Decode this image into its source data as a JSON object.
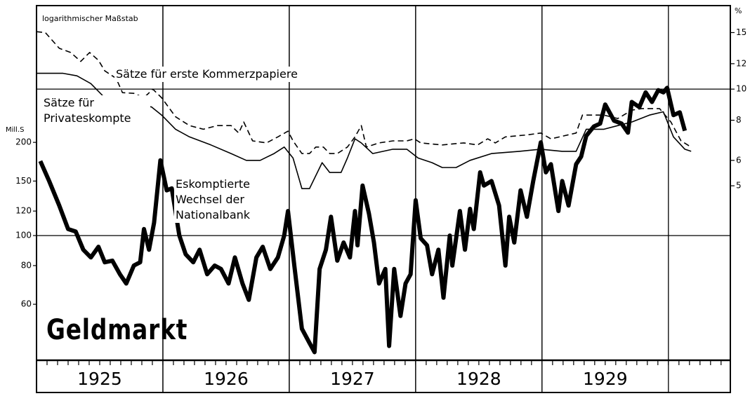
{
  "chart_data": {
    "type": "line",
    "title": "Geldmarkt",
    "subtitle": "logarithmischer Maßstab",
    "y_label": "Mill.S",
    "y2_label": "%",
    "log_scale": true,
    "xlim": [
      1925,
      1930.49
    ],
    "xticks": [
      {
        "value": 1925.5,
        "label": "1925"
      },
      {
        "value": 1926.5,
        "label": "1926"
      },
      {
        "value": 1927.5,
        "label": "1927"
      },
      {
        "value": 1928.5,
        "label": "1928"
      },
      {
        "value": 1929.5,
        "label": "1929"
      }
    ],
    "ylim": [
      40.4,
      553
    ],
    "yticks": [
      60,
      80,
      100,
      120,
      150,
      200
    ],
    "y2lim": [
      1.46,
      18.2
    ],
    "y2ticks": [
      5,
      6,
      8,
      10,
      12,
      15
    ],
    "ygrid": [
      100
    ],
    "y2grid": [
      10
    ],
    "series": [
      {
        "name": "Eskomptierte Wechsel der Nationalbank",
        "color": "#000000",
        "line_width": 6,
        "dashed": false,
        "axis": "y",
        "x": [
          1925.03,
          1925.1,
          1925.18,
          1925.25,
          1925.31,
          1925.37,
          1925.43,
          1925.49,
          1925.54,
          1925.6,
          1925.66,
          1925.71,
          1925.77,
          1925.82,
          1925.85,
          1925.89,
          1925.93,
          1925.98,
          1926.03,
          1926.07,
          1926.13,
          1926.18,
          1926.24,
          1926.29,
          1926.35,
          1926.41,
          1926.46,
          1926.52,
          1926.57,
          1926.63,
          1926.68,
          1926.74,
          1926.79,
          1926.85,
          1926.91,
          1926.96,
          1926.99,
          1927.04,
          1927.1,
          1927.16,
          1927.2,
          1927.24,
          1927.29,
          1927.33,
          1927.38,
          1927.43,
          1927.48,
          1927.52,
          1927.54,
          1927.58,
          1927.63,
          1927.67,
          1927.71,
          1927.76,
          1927.79,
          1927.83,
          1927.88,
          1927.92,
          1927.96,
          1928.0,
          1928.04,
          1928.09,
          1928.13,
          1928.18,
          1928.22,
          1928.27,
          1928.29,
          1928.35,
          1928.39,
          1928.43,
          1928.46,
          1928.51,
          1928.54,
          1928.6,
          1928.66,
          1928.71,
          1928.74,
          1928.78,
          1928.83,
          1928.88,
          1928.93,
          1928.99,
          1929.03,
          1929.07,
          1929.13,
          1929.16,
          1929.21,
          1929.27,
          1929.31,
          1929.35,
          1929.41,
          1929.46,
          1929.5,
          1929.57,
          1929.63,
          1929.68,
          1929.71,
          1929.77,
          1929.82,
          1929.87,
          1929.92,
          1929.96,
          1929.99,
          1930.04,
          1930.09,
          1930.13
        ],
        "values": [
          174,
          150,
          125,
          105,
          103,
          90,
          85,
          92,
          82,
          83,
          75,
          70,
          80,
          82,
          105,
          90,
          110,
          175,
          140,
          142,
          100,
          87,
          82,
          90,
          75,
          80,
          78,
          70,
          85,
          70,
          62,
          85,
          92,
          78,
          85,
          100,
          120,
          80,
          50,
          45,
          42,
          78,
          90,
          115,
          83,
          95,
          85,
          120,
          93,
          145,
          118,
          95,
          70,
          78,
          44,
          78,
          55,
          70,
          75,
          130,
          98,
          93,
          75,
          90,
          63,
          100,
          80,
          120,
          90,
          122,
          105,
          160,
          145,
          150,
          125,
          80,
          115,
          95,
          140,
          115,
          150,
          200,
          160,
          170,
          120,
          150,
          125,
          170,
          180,
          210,
          225,
          230,
          265,
          235,
          230,
          215,
          270,
          260,
          290,
          270,
          295,
          290,
          300,
          245,
          250,
          218
        ]
      },
      {
        "name": "Sätze für erste Kommerzpapiere",
        "color": "#000000",
        "line_width": 1.6,
        "dashed": true,
        "axis": "y2",
        "x": [
          1925.0,
          1925.07,
          1925.18,
          1925.27,
          1925.35,
          1925.42,
          1925.49,
          1925.54,
          1925.63,
          1925.68,
          1925.77,
          1925.85,
          1925.92,
          1925.99,
          1926.1,
          1926.21,
          1926.32,
          1926.43,
          1926.54,
          1926.6,
          1926.64,
          1926.71,
          1926.82,
          1926.91,
          1926.99,
          1927.03,
          1927.1,
          1927.16,
          1927.21,
          1927.27,
          1927.32,
          1927.38,
          1927.46,
          1927.52,
          1927.57,
          1927.61,
          1927.71,
          1927.82,
          1927.93,
          1927.99,
          1928.04,
          1928.21,
          1928.38,
          1928.49,
          1928.57,
          1928.63,
          1928.71,
          1928.88,
          1928.99,
          1929.07,
          1929.27,
          1929.32,
          1929.49,
          1929.6,
          1929.71,
          1929.79,
          1929.93,
          1930.02,
          1930.1,
          1930.18
        ],
        "values": [
          15.1,
          15,
          13.4,
          13,
          12.2,
          13,
          12.3,
          11.4,
          10.8,
          9.75,
          9.7,
          9.4,
          10,
          9.4,
          8.2,
          7.7,
          7.5,
          7.7,
          7.7,
          7.3,
          7.9,
          6.9,
          6.8,
          7.1,
          7.4,
          6.9,
          6.3,
          6.3,
          6.6,
          6.6,
          6.3,
          6.3,
          6.6,
          7.1,
          7.7,
          6.6,
          6.8,
          6.9,
          6.9,
          7.0,
          6.8,
          6.7,
          6.8,
          6.7,
          7.0,
          6.8,
          7.1,
          7.2,
          7.3,
          7.0,
          7.3,
          8.3,
          8.3,
          8.1,
          8.6,
          8.7,
          8.7,
          7.9,
          6.9,
          6.6
        ]
      },
      {
        "name": "Sätze für Privateskompte",
        "color": "#000000",
        "line_width": 1.6,
        "dashed": false,
        "axis": "y2",
        "x": [
          1925.0,
          1925.21,
          1925.32,
          1925.43,
          1925.54,
          1925.63,
          1925.71,
          1925.82,
          1925.91,
          1925.99,
          1926.1,
          1926.21,
          1926.38,
          1926.54,
          1926.66,
          1926.77,
          1926.88,
          1926.96,
          1927.03,
          1927.1,
          1927.16,
          1927.26,
          1927.32,
          1927.41,
          1927.46,
          1927.52,
          1927.57,
          1927.66,
          1927.82,
          1927.93,
          1928.02,
          1928.13,
          1928.21,
          1928.32,
          1928.43,
          1928.6,
          1928.82,
          1928.99,
          1929.16,
          1929.27,
          1929.35,
          1929.49,
          1929.6,
          1929.71,
          1929.85,
          1929.96,
          1930.04,
          1930.13,
          1930.18
        ],
        "values": [
          11.2,
          11.2,
          11.0,
          10.4,
          9.4,
          8.7,
          8.7,
          8.9,
          8.8,
          8.3,
          7.5,
          7.1,
          6.7,
          6.3,
          6.0,
          6.0,
          6.3,
          6.6,
          6.1,
          4.9,
          4.9,
          5.9,
          5.5,
          5.5,
          6.1,
          7.0,
          6.8,
          6.3,
          6.5,
          6.5,
          6.1,
          5.9,
          5.7,
          5.7,
          6.0,
          6.3,
          6.4,
          6.5,
          6.4,
          6.4,
          7.5,
          7.5,
          7.7,
          7.9,
          8.3,
          8.5,
          7.1,
          6.5,
          6.4
        ]
      }
    ]
  }
}
